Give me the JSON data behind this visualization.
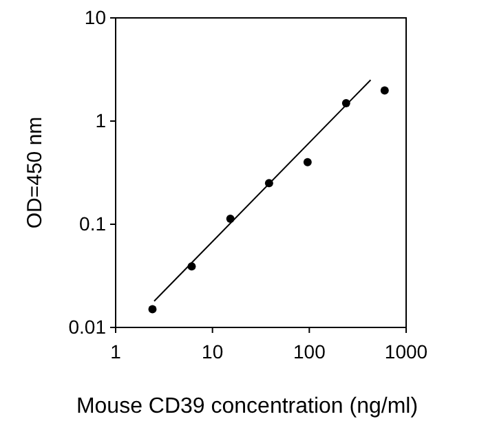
{
  "chart_data": {
    "type": "scatter",
    "xlabel": "Mouse CD39 concentration (ng/ml)",
    "ylabel": "OD=450 nm",
    "log": "xy",
    "xlim": [
      1,
      1000
    ],
    "xticks": [
      1,
      10,
      100,
      1000
    ],
    "ylim": [
      0.01,
      10
    ],
    "yticks": [
      0.01,
      0.1,
      1,
      10
    ],
    "grid": false,
    "series": [
      {
        "color": "#000000",
        "marker": "circle",
        "x": [
          2.4,
          6.1,
          15.3,
          38.4,
          96,
          240,
          600
        ],
        "values": [
          0.015,
          0.039,
          0.113,
          0.25,
          0.4,
          1.49,
          1.98
        ]
      },
      {
        "type": "line",
        "color": "#000000",
        "line_style": "solid",
        "x": [
          2.5,
          430
        ],
        "values": [
          0.018,
          2.5
        ]
      }
    ]
  }
}
